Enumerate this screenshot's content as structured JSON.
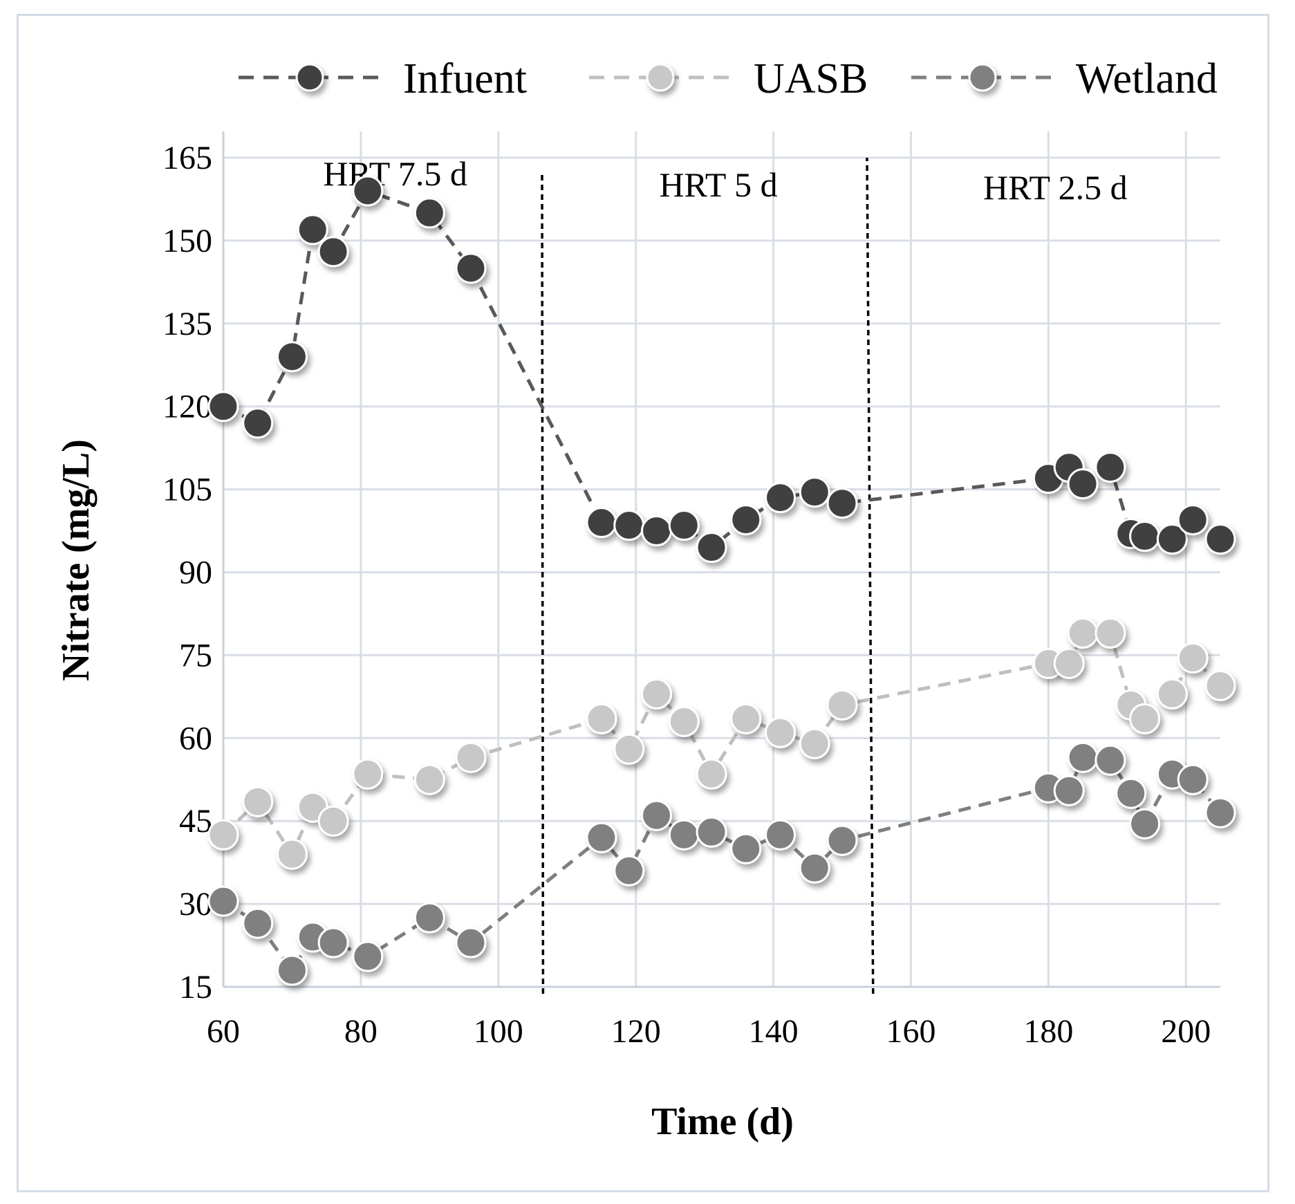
{
  "chart_data": {
    "type": "scatter",
    "title": "",
    "xlabel": "Time (d)",
    "ylabel": "Nitrate (mg/L)",
    "xlim": [
      60,
      205
    ],
    "ylim": [
      15,
      165
    ],
    "xticks": [
      60,
      80,
      100,
      120,
      140,
      160,
      180,
      200
    ],
    "yticks": [
      15,
      30,
      45,
      60,
      75,
      90,
      105,
      120,
      135,
      150,
      165
    ],
    "grid": true,
    "legend_position": "top",
    "series": [
      {
        "name": "Infuent",
        "color": "#404040",
        "line_color": "#595959",
        "points": [
          [
            60,
            120
          ],
          [
            65,
            117
          ],
          [
            70,
            129
          ],
          [
            73,
            152
          ],
          [
            76,
            148
          ],
          [
            81,
            159
          ],
          [
            90,
            155
          ],
          [
            96,
            145
          ],
          [
            115,
            99
          ],
          [
            119,
            98.5
          ],
          [
            123,
            97.5
          ],
          [
            127,
            98.5
          ],
          [
            131,
            94.5
          ],
          [
            136,
            99.5
          ],
          [
            141,
            103.5
          ],
          [
            146,
            104.5
          ],
          [
            150,
            102.5
          ],
          [
            180,
            107
          ],
          [
            183,
            109
          ],
          [
            185,
            106
          ],
          [
            189,
            109
          ],
          [
            192,
            97
          ],
          [
            194,
            96.5
          ],
          [
            198,
            96
          ],
          [
            201,
            99.5
          ],
          [
            205,
            96
          ]
        ]
      },
      {
        "name": "UASB",
        "color": "#c8c8c8",
        "line_color": "#bfbfbf",
        "points": [
          [
            60,
            42.5
          ],
          [
            65,
            48.5
          ],
          [
            70,
            39
          ],
          [
            73,
            47.5
          ],
          [
            76,
            45
          ],
          [
            81,
            53.5
          ],
          [
            90,
            52.5
          ],
          [
            96,
            56.5
          ],
          [
            115,
            63.5
          ],
          [
            119,
            58
          ],
          [
            123,
            68
          ],
          [
            127,
            63
          ],
          [
            131,
            53.5
          ],
          [
            136,
            63.5
          ],
          [
            141,
            61
          ],
          [
            146,
            59
          ],
          [
            150,
            66
          ],
          [
            180,
            73.5
          ],
          [
            183,
            73.5
          ],
          [
            185,
            79
          ],
          [
            189,
            79
          ],
          [
            192,
            66
          ],
          [
            194,
            63.5
          ],
          [
            198,
            68
          ],
          [
            201,
            74.5
          ],
          [
            205,
            69.5
          ]
        ]
      },
      {
        "name": "Wetland",
        "color": "#808080",
        "line_color": "#7f7f7f",
        "points": [
          [
            60,
            30.5
          ],
          [
            65,
            26.5
          ],
          [
            70,
            18
          ],
          [
            73,
            24
          ],
          [
            76,
            23
          ],
          [
            81,
            20.5
          ],
          [
            90,
            27.5
          ],
          [
            96,
            23
          ],
          [
            115,
            42
          ],
          [
            119,
            36
          ],
          [
            123,
            46
          ],
          [
            127,
            42.5
          ],
          [
            131,
            43
          ],
          [
            136,
            40
          ],
          [
            141,
            42.5
          ],
          [
            146,
            36.5
          ],
          [
            150,
            41.5
          ],
          [
            180,
            51
          ],
          [
            183,
            50.5
          ],
          [
            185,
            56.5
          ],
          [
            189,
            56
          ],
          [
            192,
            50
          ],
          [
            194,
            44.5
          ],
          [
            198,
            53.5
          ],
          [
            201,
            52.5
          ],
          [
            205,
            46.5
          ]
        ]
      }
    ],
    "dividers": [
      {
        "x_bottom": 106.5,
        "y_top": 162
      },
      {
        "x_bottom": 154.5,
        "y_top": 165
      }
    ],
    "regions": [
      {
        "label": "HRT 7.5 d",
        "x": 85,
        "y": 160
      },
      {
        "label": "HRT 5 d",
        "x": 132,
        "y": 158
      },
      {
        "label": "HRT 2.5 d",
        "x": 181,
        "y": 157.5
      }
    ]
  }
}
